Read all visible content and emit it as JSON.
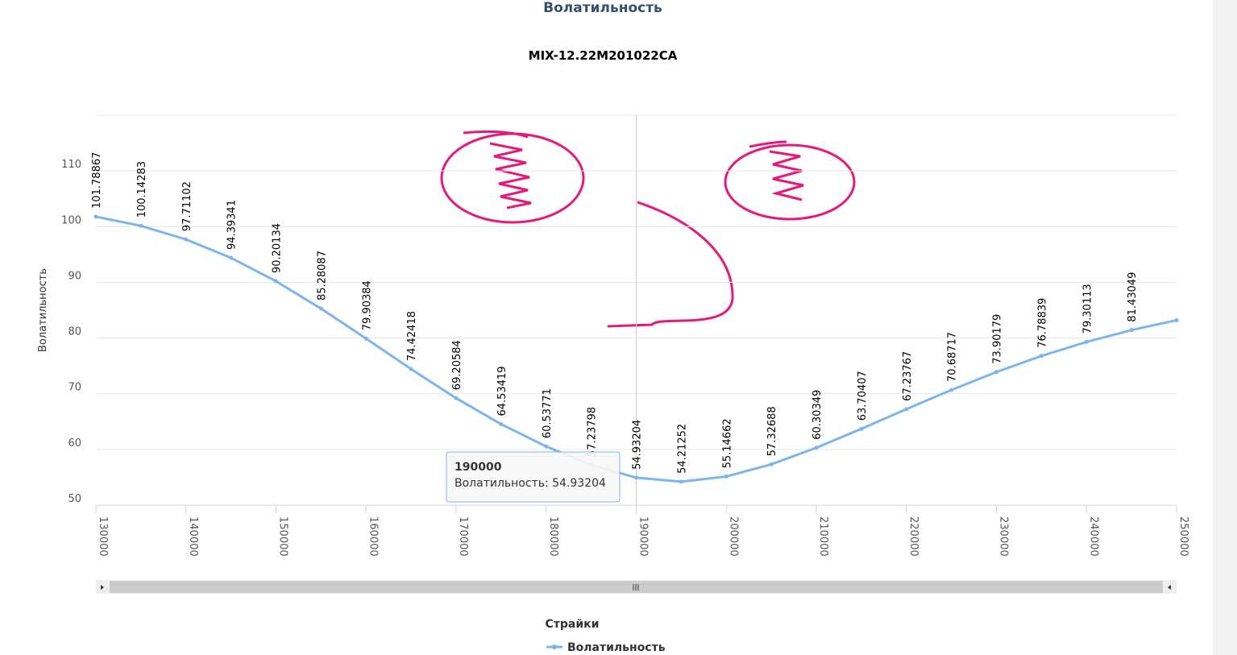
{
  "chart_data": {
    "type": "line",
    "title": "Волатильность",
    "subtitle": "MIX-12.22M201022CA",
    "x_label": "Страйки",
    "y_label": "Волатильность",
    "x": [
      130000,
      135000,
      140000,
      145000,
      150000,
      155000,
      160000,
      165000,
      170000,
      175000,
      180000,
      185000,
      190000,
      195000,
      200000,
      205000,
      210000,
      215000,
      220000,
      225000,
      230000,
      235000,
      240000,
      245000,
      250000
    ],
    "series": [
      {
        "name": "Волатильность",
        "color": "#7cb5ec",
        "values": [
          101.78867,
          100.14283,
          97.71102,
          94.39341,
          90.20134,
          85.28087,
          79.90384,
          74.42418,
          69.20584,
          64.53419,
          60.53771,
          57.23798,
          54.93204,
          54.21252,
          55.14662,
          57.32688,
          60.30349,
          63.70407,
          67.23767,
          70.68717,
          73.90179,
          76.78839,
          79.30113,
          81.43049,
          83.2
        ],
        "value_labels": [
          "101.78867",
          "100.14283",
          "97.71102",
          "94.39341",
          "90.20134",
          "85.28087",
          "79.90384",
          "74.42418",
          "69.20584",
          "64.53419",
          "60.53771",
          "57.23798",
          "54.93204",
          "54.21252",
          "55.14662",
          "57.32688",
          "60.30349",
          "63.70407",
          "67.23767",
          "70.68717",
          "73.90179",
          "76.78839",
          "79.30113",
          "81.43049",
          null
        ]
      }
    ],
    "xlim": [
      130000,
      250000
    ],
    "xticks": [
      130000,
      140000,
      150000,
      160000,
      170000,
      180000,
      190000,
      200000,
      210000,
      220000,
      230000,
      240000,
      250000
    ],
    "ylim": [
      50,
      120
    ],
    "yticks": [
      50,
      60,
      70,
      80,
      90,
      100,
      110
    ],
    "grid": true,
    "legend": "bottom",
    "tooltip": {
      "index": 12,
      "title": "190000",
      "text": "Волатильность: 54.93204"
    }
  }
}
